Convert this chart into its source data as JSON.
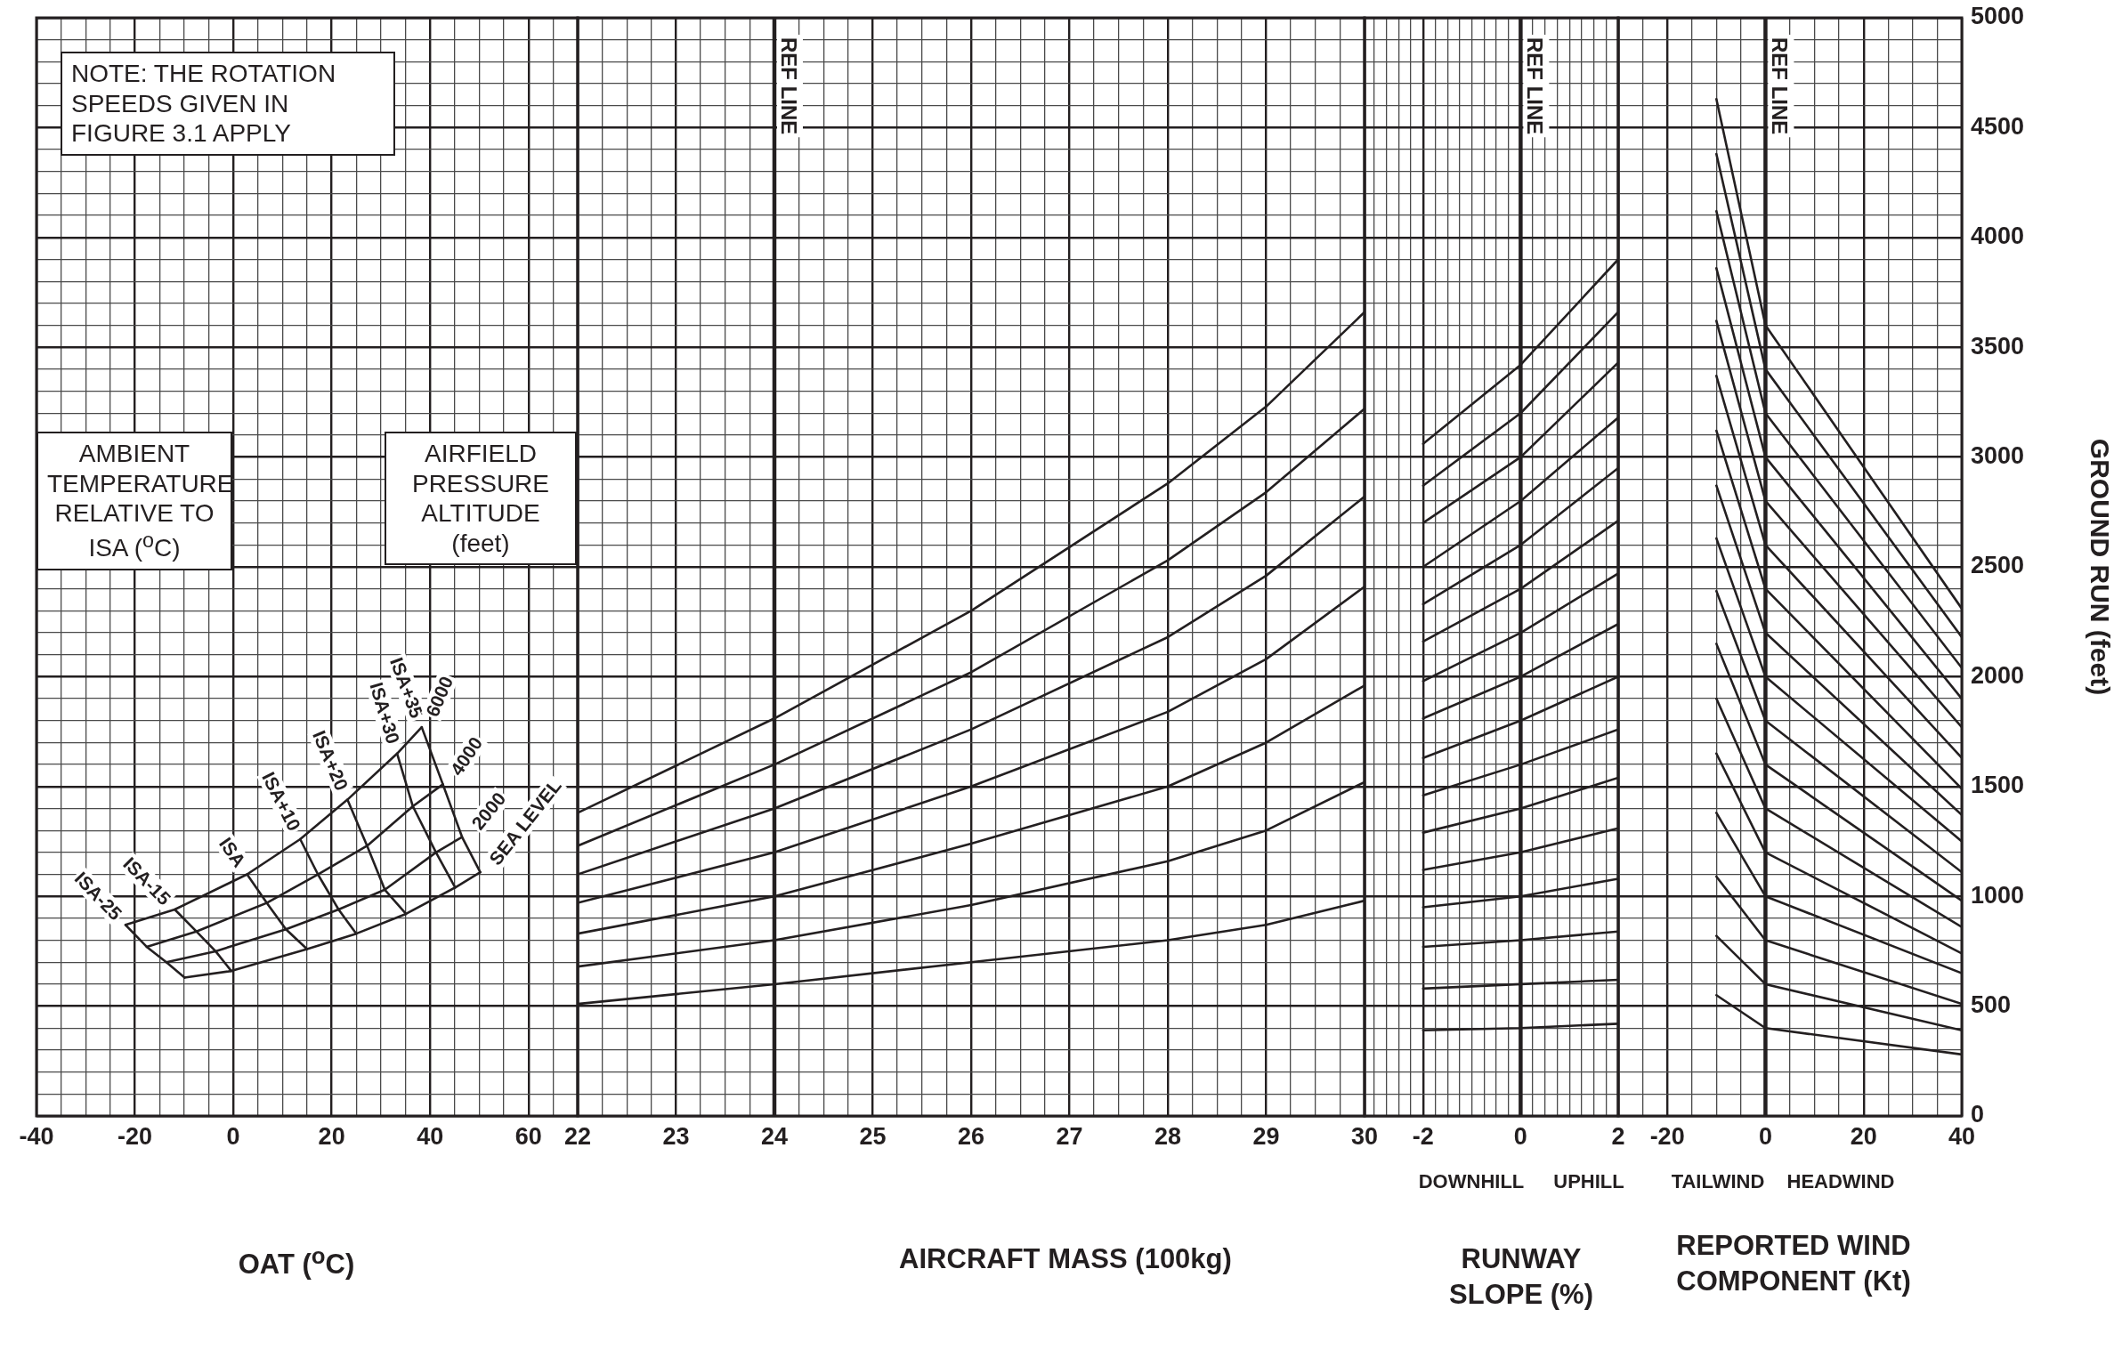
{
  "chart_data": [
    {
      "type": "line",
      "xlabel": "OAT ($^{o}$C)",
      "annotations": [
        "NOTE: THE ROTATION SPEEDS GIVEN IN FIGURE 3.1 APPLY",
        "AMBIENT TEMPERATURE RELATIVE TO ISA ($^{o}$C)",
        "AIRFIELD PRESSURE ALTITUDE (feet)"
      ],
      "xlim": [
        -40,
        70
      ],
      "xticks": [
        -40,
        {
          "value": -35,
          "label": null
        },
        {
          "value": -30,
          "label": null
        },
        {
          "value": -25,
          "label": null
        },
        -20,
        {
          "value": -15,
          "label": null
        },
        {
          "value": -10,
          "label": null
        },
        {
          "value": -5,
          "label": null
        },
        0,
        {
          "value": 5,
          "label": null
        },
        {
          "value": 10,
          "label": null
        },
        {
          "value": 15,
          "label": null
        },
        20,
        {
          "value": 25,
          "label": null
        },
        {
          "value": 30,
          "label": null
        },
        {
          "value": 35,
          "label": null
        },
        40,
        {
          "value": 45,
          "label": null
        },
        {
          "value": 50,
          "label": null
        },
        {
          "value": 55,
          "label": null
        },
        60,
        {
          "value": 65,
          "label": null
        },
        {
          "value": 70,
          "label": null
        }
      ],
      "ylim": [
        0,
        5000
      ],
      "yticks": [
        0,
        {
          "value": 100,
          "label": null
        },
        {
          "value": 200,
          "label": null
        },
        {
          "value": 300,
          "label": null
        },
        {
          "value": 400,
          "label": null
        },
        500,
        {
          "value": 600,
          "label": null
        },
        {
          "value": 700,
          "label": null
        },
        {
          "value": 800,
          "label": null
        },
        {
          "value": 900,
          "label": null
        },
        1000,
        {
          "value": 1100,
          "label": null
        },
        {
          "value": 1200,
          "label": null
        },
        {
          "value": 1300,
          "label": null
        },
        {
          "value": 1400,
          "label": null
        },
        1500,
        {
          "value": 1600,
          "label": null
        },
        {
          "value": 1700,
          "label": null
        },
        {
          "value": 1800,
          "label": null
        },
        {
          "value": 1900,
          "label": null
        },
        2000,
        {
          "value": 2100,
          "label": null
        },
        {
          "value": 2200,
          "label": null
        },
        {
          "value": 2300,
          "label": null
        },
        {
          "value": 2400,
          "label": null
        },
        2500,
        {
          "value": 2600,
          "label": null
        },
        {
          "value": 2700,
          "label": null
        },
        {
          "value": 2800,
          "label": null
        },
        {
          "value": 2900,
          "label": null
        },
        3000,
        {
          "value": 3100,
          "label": null
        },
        {
          "value": 3200,
          "label": null
        },
        {
          "value": 3300,
          "label": null
        },
        {
          "value": 3400,
          "label": null
        },
        3500,
        {
          "value": 3600,
          "label": null
        },
        {
          "value": 3700,
          "label": null
        },
        {
          "value": 3800,
          "label": null
        },
        {
          "value": 3900,
          "label": null
        },
        4000,
        {
          "value": 4100,
          "label": null
        },
        {
          "value": 4200,
          "label": null
        },
        {
          "value": 4300,
          "label": null
        },
        {
          "value": 4400,
          "label": null
        },
        4500,
        {
          "value": 4600,
          "label": null
        },
        {
          "value": 4700,
          "label": null
        },
        {
          "value": 4800,
          "label": null
        },
        {
          "value": 4900,
          "label": null
        },
        5000
      ],
      "grid": true,
      "tick_labels": "x",
      "series": [
        {
          "name": "ISA-25",
          "color": "#231f20",
          "x": [
            -21.9,
            -17.6,
            -13.6,
            -9.9
          ],
          "values": [
            870,
            770,
            700,
            630
          ]
        },
        {
          "name": "ISA-15",
          "color": "#231f20",
          "x": [
            -11.9,
            -7.5,
            -3.6,
            -0.4
          ],
          "values": [
            940,
            840,
            750,
            660
          ]
        },
        {
          "name": "ISA",
          "color": "#231f20",
          "x": [
            2.8,
            6.8,
            10.7,
            15
          ],
          "values": [
            1100,
            970,
            850,
            760
          ]
        },
        {
          "name": "ISA+10",
          "color": "#231f20",
          "x": [
            13.6,
            17.2,
            21.4,
            25
          ],
          "values": [
            1260,
            1100,
            940,
            830
          ]
        },
        {
          "name": "ISA+20",
          "color": "#231f20",
          "x": [
            23.2,
            27.2,
            30.8,
            35.1
          ],
          "values": [
            1440,
            1230,
            1030,
            920
          ]
        },
        {
          "name": "ISA+30",
          "color": "#231f20",
          "x": [
            33.3,
            36.5,
            41.2,
            45.1
          ],
          "values": [
            1650,
            1410,
            1200,
            1040
          ]
        },
        {
          "name": "ISA+35",
          "color": "#231f20",
          "x": [
            38.3,
            42.6,
            46.5,
            50.2
          ],
          "values": [
            1770,
            1510,
            1270,
            1110
          ]
        },
        {
          "name": "6000",
          "color": "#231f20",
          "x": [
            -21.9,
            -11.9,
            2.8,
            13.6,
            23.2,
            33.3,
            38.3
          ],
          "values": [
            870,
            940,
            1100,
            1260,
            1440,
            1650,
            1770
          ]
        },
        {
          "name": "4000",
          "color": "#231f20",
          "x": [
            -17.6,
            -7.5,
            6.8,
            17.2,
            27.2,
            36.5,
            42.6
          ],
          "values": [
            770,
            840,
            970,
            1100,
            1230,
            1410,
            1510
          ]
        },
        {
          "name": "2000",
          "color": "#231f20",
          "x": [
            -13.6,
            -3.6,
            10.7,
            21.4,
            30.8,
            41.2,
            46.5
          ],
          "values": [
            700,
            750,
            850,
            940,
            1030,
            1200,
            1270
          ]
        },
        {
          "name": "SEA LEVEL",
          "color": "#231f20",
          "x": [
            -9.9,
            -0.4,
            15,
            25,
            35.1,
            45.1,
            50.2
          ],
          "values": [
            630,
            660,
            760,
            830,
            920,
            1040,
            1110
          ]
        }
      ]
    },
    {
      "type": "line",
      "xlabel": "AIRCRAFT MASS (100kg)",
      "xlim": [
        22,
        30
      ],
      "xticks": [
        22,
        {
          "value": 22.25,
          "label": null
        },
        {
          "value": 22.5,
          "label": null
        },
        {
          "value": 22.75,
          "label": null
        },
        23,
        {
          "value": 23.25,
          "label": null
        },
        {
          "value": 23.5,
          "label": null
        },
        {
          "value": 23.75,
          "label": null
        },
        24,
        {
          "value": 24.25,
          "label": null
        },
        {
          "value": 24.5,
          "label": null
        },
        {
          "value": 24.75,
          "label": null
        },
        25,
        {
          "value": 25.25,
          "label": null
        },
        {
          "value": 25.5,
          "label": null
        },
        {
          "value": 25.75,
          "label": null
        },
        26,
        {
          "value": 26.25,
          "label": null
        },
        {
          "value": 26.5,
          "label": null
        },
        {
          "value": 26.75,
          "label": null
        },
        27,
        {
          "value": 27.25,
          "label": null
        },
        {
          "value": 27.5,
          "label": null
        },
        {
          "value": 27.75,
          "label": null
        },
        28,
        {
          "value": 28.25,
          "label": null
        },
        {
          "value": 28.5,
          "label": null
        },
        {
          "value": 28.75,
          "label": null
        },
        29,
        {
          "value": 29.25,
          "label": null
        },
        {
          "value": 29.5,
          "label": null
        },
        {
          "value": 29.75,
          "label": null
        },
        30
      ],
      "ylim": [
        0,
        5000
      ],
      "yticks": [
        0,
        {
          "value": 100,
          "label": null
        },
        {
          "value": 200,
          "label": null
        },
        {
          "value": 300,
          "label": null
        },
        {
          "value": 400,
          "label": null
        },
        500,
        {
          "value": 600,
          "label": null
        },
        {
          "value": 700,
          "label": null
        },
        {
          "value": 800,
          "label": null
        },
        {
          "value": 900,
          "label": null
        },
        1000,
        {
          "value": 1100,
          "label": null
        },
        {
          "value": 1200,
          "label": null
        },
        {
          "value": 1300,
          "label": null
        },
        {
          "value": 1400,
          "label": null
        },
        1500,
        {
          "value": 1600,
          "label": null
        },
        {
          "value": 1700,
          "label": null
        },
        {
          "value": 1800,
          "label": null
        },
        {
          "value": 1900,
          "label": null
        },
        2000,
        {
          "value": 2100,
          "label": null
        },
        {
          "value": 2200,
          "label": null
        },
        {
          "value": 2300,
          "label": null
        },
        {
          "value": 2400,
          "label": null
        },
        2500,
        {
          "value": 2600,
          "label": null
        },
        {
          "value": 2700,
          "label": null
        },
        {
          "value": 2800,
          "label": null
        },
        {
          "value": 2900,
          "label": null
        },
        3000,
        {
          "value": 3100,
          "label": null
        },
        {
          "value": 3200,
          "label": null
        },
        {
          "value": 3300,
          "label": null
        },
        {
          "value": 3400,
          "label": null
        },
        3500,
        {
          "value": 3600,
          "label": null
        },
        {
          "value": 3700,
          "label": null
        },
        {
          "value": 3800,
          "label": null
        },
        {
          "value": 3900,
          "label": null
        },
        4000,
        {
          "value": 4100,
          "label": null
        },
        {
          "value": 4200,
          "label": null
        },
        {
          "value": 4300,
          "label": null
        },
        {
          "value": 4400,
          "label": null
        },
        4500,
        {
          "value": 4600,
          "label": null
        },
        {
          "value": 4700,
          "label": null
        },
        {
          "value": 4800,
          "label": null
        },
        {
          "value": 4900,
          "label": null
        },
        5000
      ],
      "grid": true,
      "tick_labels": "x",
      "ref_lines": [
        {
          "axis": "x",
          "value": 24,
          "label": "REF LINE"
        }
      ],
      "x": [
        22,
        24,
        26,
        28,
        29,
        30
      ],
      "series": [
        {
          "color": "#231f20",
          "values": [
            1380,
            1810,
            2300,
            2880,
            3230,
            3660
          ]
        },
        {
          "color": "#231f20",
          "values": [
            1230,
            1600,
            2020,
            2530,
            2840,
            3220
          ]
        },
        {
          "color": "#231f20",
          "values": [
            1100,
            1400,
            1760,
            2180,
            2460,
            2820
          ]
        },
        {
          "color": "#231f20",
          "values": [
            970,
            1200,
            1500,
            1840,
            2080,
            2410
          ]
        },
        {
          "color": "#231f20",
          "values": [
            830,
            1000,
            1240,
            1500,
            1700,
            1960
          ]
        },
        {
          "color": "#231f20",
          "values": [
            680,
            800,
            960,
            1160,
            1300,
            1520
          ]
        },
        {
          "color": "#231f20",
          "values": [
            510,
            600,
            700,
            800,
            870,
            980
          ]
        }
      ]
    },
    {
      "type": "line",
      "xlabel": "RUNWAY SLOPE (%)",
      "annotations": [
        "DOWNHILL",
        "UPHILL"
      ],
      "xlim": [
        -3.2,
        2
      ],
      "xticks": [
        {
          "value": -3,
          "label": null
        },
        {
          "value": -2.75,
          "label": null
        },
        {
          "value": -2.5,
          "label": null
        },
        {
          "value": -2.25,
          "label": null
        },
        -2,
        {
          "value": -1.75,
          "label": null
        },
        {
          "value": -1.5,
          "label": null
        },
        {
          "value": -1.25,
          "label": null
        },
        {
          "value": -1,
          "label": null
        },
        {
          "value": -0.75,
          "label": null
        },
        {
          "value": -0.5,
          "label": null
        },
        {
          "value": -0.25,
          "label": null
        },
        0,
        {
          "value": 0.25,
          "label": null
        },
        {
          "value": 0.5,
          "label": null
        },
        {
          "value": 0.75,
          "label": null
        },
        {
          "value": 1,
          "label": null
        },
        {
          "value": 1.25,
          "label": null
        },
        {
          "value": 1.5,
          "label": null
        },
        {
          "value": 1.75,
          "label": null
        },
        2
      ],
      "ylim": [
        0,
        5000
      ],
      "yticks": [
        0,
        {
          "value": 100,
          "label": null
        },
        {
          "value": 200,
          "label": null
        },
        {
          "value": 300,
          "label": null
        },
        {
          "value": 400,
          "label": null
        },
        500,
        {
          "value": 600,
          "label": null
        },
        {
          "value": 700,
          "label": null
        },
        {
          "value": 800,
          "label": null
        },
        {
          "value": 900,
          "label": null
        },
        1000,
        {
          "value": 1100,
          "label": null
        },
        {
          "value": 1200,
          "label": null
        },
        {
          "value": 1300,
          "label": null
        },
        {
          "value": 1400,
          "label": null
        },
        1500,
        {
          "value": 1600,
          "label": null
        },
        {
          "value": 1700,
          "label": null
        },
        {
          "value": 1800,
          "label": null
        },
        {
          "value": 1900,
          "label": null
        },
        2000,
        {
          "value": 2100,
          "label": null
        },
        {
          "value": 2200,
          "label": null
        },
        {
          "value": 2300,
          "label": null
        },
        {
          "value": 2400,
          "label": null
        },
        2500,
        {
          "value": 2600,
          "label": null
        },
        {
          "value": 2700,
          "label": null
        },
        {
          "value": 2800,
          "label": null
        },
        {
          "value": 2900,
          "label": null
        },
        3000,
        {
          "value": 3100,
          "label": null
        },
        {
          "value": 3200,
          "label": null
        },
        {
          "value": 3300,
          "label": null
        },
        {
          "value": 3400,
          "label": null
        },
        3500,
        {
          "value": 3600,
          "label": null
        },
        {
          "value": 3700,
          "label": null
        },
        {
          "value": 3800,
          "label": null
        },
        {
          "value": 3900,
          "label": null
        },
        4000,
        {
          "value": 4100,
          "label": null
        },
        {
          "value": 4200,
          "label": null
        },
        {
          "value": 4300,
          "label": null
        },
        {
          "value": 4400,
          "label": null
        },
        4500,
        {
          "value": 4600,
          "label": null
        },
        {
          "value": 4700,
          "label": null
        },
        {
          "value": 4800,
          "label": null
        },
        {
          "value": 4900,
          "label": null
        },
        5000
      ],
      "grid": true,
      "tick_labels": "x",
      "ref_lines": [
        {
          "axis": "x",
          "value": 0,
          "label": "REF LINE"
        }
      ],
      "x": [
        -2,
        0,
        2
      ],
      "series": [
        {
          "color": "#231f20",
          "values": [
            3060,
            3420,
            3900
          ]
        },
        {
          "color": "#231f20",
          "values": [
            2870,
            3200,
            3660
          ]
        },
        {
          "color": "#231f20",
          "values": [
            2700,
            3000,
            3430
          ]
        },
        {
          "color": "#231f20",
          "values": [
            2500,
            2800,
            3180
          ]
        },
        {
          "color": "#231f20",
          "values": [
            2330,
            2600,
            2950
          ]
        },
        {
          "color": "#231f20",
          "values": [
            2160,
            2400,
            2710
          ]
        },
        {
          "color": "#231f20",
          "values": [
            1980,
            2200,
            2470
          ]
        },
        {
          "color": "#231f20",
          "values": [
            1810,
            2000,
            2240
          ]
        },
        {
          "color": "#231f20",
          "values": [
            1630,
            1800,
            2000
          ]
        },
        {
          "color": "#231f20",
          "values": [
            1460,
            1600,
            1760
          ]
        },
        {
          "color": "#231f20",
          "values": [
            1290,
            1400,
            1540
          ]
        },
        {
          "color": "#231f20",
          "values": [
            1120,
            1200,
            1310
          ]
        },
        {
          "color": "#231f20",
          "values": [
            950,
            1000,
            1080
          ]
        },
        {
          "color": "#231f20",
          "values": [
            770,
            800,
            840
          ]
        },
        {
          "color": "#231f20",
          "values": [
            580,
            600,
            620
          ]
        },
        {
          "color": "#231f20",
          "values": [
            390,
            400,
            420
          ]
        }
      ]
    },
    {
      "type": "line",
      "xlabel": "REPORTED WIND COMPONENT (Kt)",
      "ylabel": "GROUND RUN (feet)",
      "annotations": [
        "TAILWIND",
        "HEADWIND"
      ],
      "xlim": [
        -30,
        40
      ],
      "xticks": [
        {
          "value": -30,
          "label": null
        },
        {
          "value": -25,
          "label": null
        },
        -20,
        {
          "value": -15,
          "label": null
        },
        {
          "value": -10,
          "label": null
        },
        {
          "value": -5,
          "label": null
        },
        0,
        {
          "value": 5,
          "label": null
        },
        {
          "value": 10,
          "label": null
        },
        {
          "value": 15,
          "label": null
        },
        20,
        {
          "value": 25,
          "label": null
        },
        {
          "value": 30,
          "label": null
        },
        {
          "value": 35,
          "label": null
        },
        40
      ],
      "ylim": [
        0,
        5000
      ],
      "yticks": [
        0,
        {
          "value": 100,
          "label": null
        },
        {
          "value": 200,
          "label": null
        },
        {
          "value": 300,
          "label": null
        },
        {
          "value": 400,
          "label": null
        },
        500,
        {
          "value": 600,
          "label": null
        },
        {
          "value": 700,
          "label": null
        },
        {
          "value": 800,
          "label": null
        },
        {
          "value": 900,
          "label": null
        },
        1000,
        {
          "value": 1100,
          "label": null
        },
        {
          "value": 1200,
          "label": null
        },
        {
          "value": 1300,
          "label": null
        },
        {
          "value": 1400,
          "label": null
        },
        1500,
        {
          "value": 1600,
          "label": null
        },
        {
          "value": 1700,
          "label": null
        },
        {
          "value": 1800,
          "label": null
        },
        {
          "value": 1900,
          "label": null
        },
        2000,
        {
          "value": 2100,
          "label": null
        },
        {
          "value": 2200,
          "label": null
        },
        {
          "value": 2300,
          "label": null
        },
        {
          "value": 2400,
          "label": null
        },
        2500,
        {
          "value": 2600,
          "label": null
        },
        {
          "value": 2700,
          "label": null
        },
        {
          "value": 2800,
          "label": null
        },
        {
          "value": 2900,
          "label": null
        },
        3000,
        {
          "value": 3100,
          "label": null
        },
        {
          "value": 3200,
          "label": null
        },
        {
          "value": 3300,
          "label": null
        },
        {
          "value": 3400,
          "label": null
        },
        3500,
        {
          "value": 3600,
          "label": null
        },
        {
          "value": 3700,
          "label": null
        },
        {
          "value": 3800,
          "label": null
        },
        {
          "value": 3900,
          "label": null
        },
        4000,
        {
          "value": 4100,
          "label": null
        },
        {
          "value": 4200,
          "label": null
        },
        {
          "value": 4300,
          "label": null
        },
        {
          "value": 4400,
          "label": null
        },
        4500,
        {
          "value": 4600,
          "label": null
        },
        {
          "value": 4700,
          "label": null
        },
        {
          "value": 4800,
          "label": null
        },
        {
          "value": 4900,
          "label": null
        },
        5000
      ],
      "grid": true,
      "ref_lines": [
        {
          "axis": "x",
          "value": 0,
          "label": "REF LINE"
        }
      ],
      "x": [
        -10,
        0,
        40
      ],
      "series": [
        {
          "color": "#231f20",
          "values": [
            4630,
            3600,
            2310
          ]
        },
        {
          "color": "#231f20",
          "values": [
            4380,
            3400,
            2180
          ]
        },
        {
          "color": "#231f20",
          "values": [
            4120,
            3200,
            2040
          ]
        },
        {
          "color": "#231f20",
          "values": [
            3860,
            3000,
            1900
          ]
        },
        {
          "color": "#231f20",
          "values": [
            3620,
            2800,
            1770
          ]
        },
        {
          "color": "#231f20",
          "values": [
            3370,
            2600,
            1630
          ]
        },
        {
          "color": "#231f20",
          "values": [
            3120,
            2400,
            1490
          ]
        },
        {
          "color": "#231f20",
          "values": [
            2870,
            2200,
            1370
          ]
        },
        {
          "color": "#231f20",
          "values": [
            2630,
            2000,
            1250
          ]
        },
        {
          "color": "#231f20",
          "values": [
            2390,
            1800,
            1110
          ]
        },
        {
          "color": "#231f20",
          "values": [
            2150,
            1600,
            980
          ]
        },
        {
          "color": "#231f20",
          "values": [
            1900,
            1400,
            860
          ]
        },
        {
          "color": "#231f20",
          "values": [
            1650,
            1200,
            740
          ]
        },
        {
          "color": "#231f20",
          "values": [
            1380,
            1000,
            650
          ]
        },
        {
          "color": "#231f20",
          "values": [
            1090,
            800,
            510
          ]
        },
        {
          "color": "#231f20",
          "values": [
            820,
            600,
            390
          ]
        },
        {
          "color": "#231f20",
          "values": [
            550,
            400,
            280
          ]
        }
      ]
    }
  ]
}
